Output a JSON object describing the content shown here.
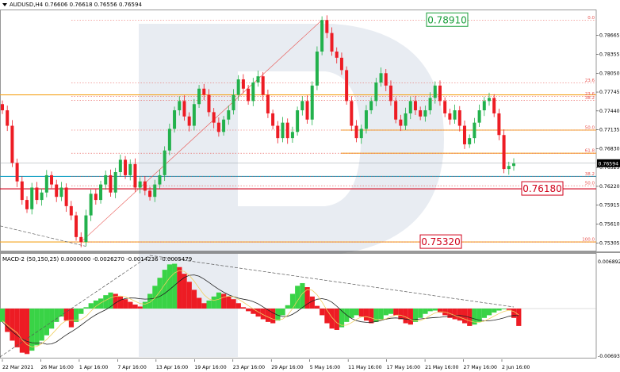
{
  "header": {
    "symbol": "AUDUSD,H4",
    "ohlc": "0.76606 0.76618 0.76556 0.76594"
  },
  "macd": {
    "title": "MACD-2 (50,150,25) 0.0000000 -0.0026270 -0.0014236 -0.0005479",
    "top_label": "0.0068924",
    "bottom_label": "-0.0069305"
  },
  "colors": {
    "bull": "#22b14c",
    "bear": "#ed1c24",
    "macd_pos": "#39d346",
    "macd_neg": "#ed1c24",
    "fib_line": "#e8534f",
    "level_orange": "#f5a623",
    "level_cyan": "#1ba3c6",
    "box_green": "#1a9e3a",
    "box_red": "#d0021b",
    "watermark": "#e8ecf2"
  },
  "chart_data": [
    {
      "type": "candlestick",
      "title": "AUDUSD,H4",
      "x_ticks": [
        "22 Mar 2021",
        "26 Mar 16:00",
        "1 Apr 16:00",
        "7 Apr 16:00",
        "13 Apr 16:00",
        "19 Apr 16:00",
        "23 Apr 16:00",
        "29 Apr 16:00",
        "5 May 16:00",
        "11 May 16:00",
        "17 May 16:00",
        "21 May 16:00",
        "27 May 16:00",
        "2 Jun 16:00"
      ],
      "y_ticks": [
        0.78665,
        0.78355,
        0.7805,
        0.77745,
        0.7744,
        0.77135,
        0.7683,
        0.76525,
        0.7622,
        0.75915,
        0.7561,
        0.75305
      ],
      "ylim": [
        0.7518,
        0.7908
      ],
      "current_price": "0.76594",
      "price_boxes": [
        {
          "value": "0.78910",
          "style": "green"
        },
        {
          "value": "0.76180",
          "style": "red"
        },
        {
          "value": "0.75320",
          "style": "red"
        }
      ],
      "fib_levels": [
        {
          "label": "0.0",
          "price": 0.7891
        },
        {
          "label": "23.6",
          "price": 0.77895
        },
        {
          "label": "23.6",
          "price": 0.77678
        },
        {
          "label": "38.2",
          "price": 0.7761
        },
        {
          "label": "50.0",
          "price": 0.7713
        },
        {
          "label": "61.8",
          "price": 0.76756
        },
        {
          "label": "38.2",
          "price": 0.7638
        },
        {
          "label": "50.0",
          "price": 0.7623
        },
        {
          "label": "100.0",
          "price": 0.7532
        }
      ],
      "horizontal_levels": [
        {
          "price": 0.777,
          "color": "orange"
        },
        {
          "price": 0.7713,
          "color": "orange",
          "from": "10 May"
        },
        {
          "price": 0.76756,
          "color": "orange",
          "from": "10 May"
        },
        {
          "price": 0.76594,
          "color": "grey"
        },
        {
          "price": 0.7638,
          "color": "cyan"
        },
        {
          "price": 0.7618,
          "color": "red"
        },
        {
          "price": 0.7532,
          "color": "orange"
        }
      ],
      "close_path": [
        0.7745,
        0.772,
        0.766,
        0.763,
        0.76,
        0.7585,
        0.762,
        0.76,
        0.7612,
        0.764,
        0.7625,
        0.7605,
        0.762,
        0.759,
        0.7575,
        0.754,
        0.7532,
        0.7575,
        0.761,
        0.76,
        0.7625,
        0.764,
        0.7612,
        0.7645,
        0.7665,
        0.764,
        0.7658,
        0.762,
        0.763,
        0.7615,
        0.7605,
        0.7625,
        0.764,
        0.768,
        0.7715,
        0.7745,
        0.776,
        0.7735,
        0.772,
        0.7755,
        0.778,
        0.777,
        0.7742,
        0.7725,
        0.771,
        0.773,
        0.7745,
        0.777,
        0.7795,
        0.778,
        0.776,
        0.779,
        0.78,
        0.777,
        0.774,
        0.772,
        0.77,
        0.7725,
        0.77,
        0.771,
        0.7745,
        0.776,
        0.773,
        0.7785,
        0.784,
        0.7891,
        0.787,
        0.784,
        0.783,
        0.781,
        0.776,
        0.772,
        0.77,
        0.7715,
        0.7745,
        0.776,
        0.779,
        0.7805,
        0.7785,
        0.776,
        0.773,
        0.772,
        0.774,
        0.776,
        0.7745,
        0.7735,
        0.7745,
        0.7765,
        0.7785,
        0.776,
        0.774,
        0.773,
        0.7745,
        0.772,
        0.769,
        0.77,
        0.7725,
        0.7745,
        0.776,
        0.7765,
        0.774,
        0.7705,
        0.765,
        0.7655,
        0.7659
      ]
    },
    {
      "type": "bar",
      "title": "MACD-2 (50,150,25)",
      "histogram_path": [
        -0.002,
        -0.0035,
        -0.0048,
        -0.0058,
        -0.0066,
        -0.0068,
        -0.0063,
        -0.0055,
        -0.0048,
        -0.004,
        -0.003,
        -0.002,
        -0.0012,
        -0.0018,
        -0.0028,
        -0.002,
        -0.0008,
        0.0002,
        0.0008,
        0.0012,
        0.0015,
        0.002,
        0.0024,
        0.0022,
        0.0018,
        0.0014,
        0.001,
        0.0006,
        0.0003,
        0.001,
        0.0022,
        0.0034,
        0.0046,
        0.0058,
        0.0066,
        0.0067,
        0.0062,
        0.0052,
        0.004,
        0.0028,
        0.0016,
        0.0008,
        0.0012,
        0.0018,
        0.0024,
        0.0022,
        0.0018,
        0.0014,
        0.0008,
        0.0002,
        -0.0004,
        -0.0008,
        -0.0012,
        -0.0016,
        -0.002,
        -0.0022,
        -0.0018,
        -0.001,
        0.0005,
        0.0022,
        0.0034,
        0.0038,
        0.0032,
        0.0018,
        0.0004,
        -0.001,
        -0.0022,
        -0.003,
        -0.0032,
        -0.0028,
        -0.002,
        -0.0014,
        -0.001,
        -0.0012,
        -0.0018,
        -0.0022,
        -0.002,
        -0.0016,
        -0.001,
        -0.0008,
        -0.001,
        -0.0016,
        -0.0022,
        -0.0024,
        -0.002,
        -0.0014,
        -0.0008,
        -0.0004,
        -0.0003,
        -0.0006,
        -0.001,
        -0.0014,
        -0.0016,
        -0.0018,
        -0.0022,
        -0.0026,
        -0.0024,
        -0.002,
        -0.0014,
        -0.001,
        -0.0006,
        -0.0003,
        0.0,
        -0.0002,
        -0.0014,
        -0.0026
      ]
    }
  ]
}
